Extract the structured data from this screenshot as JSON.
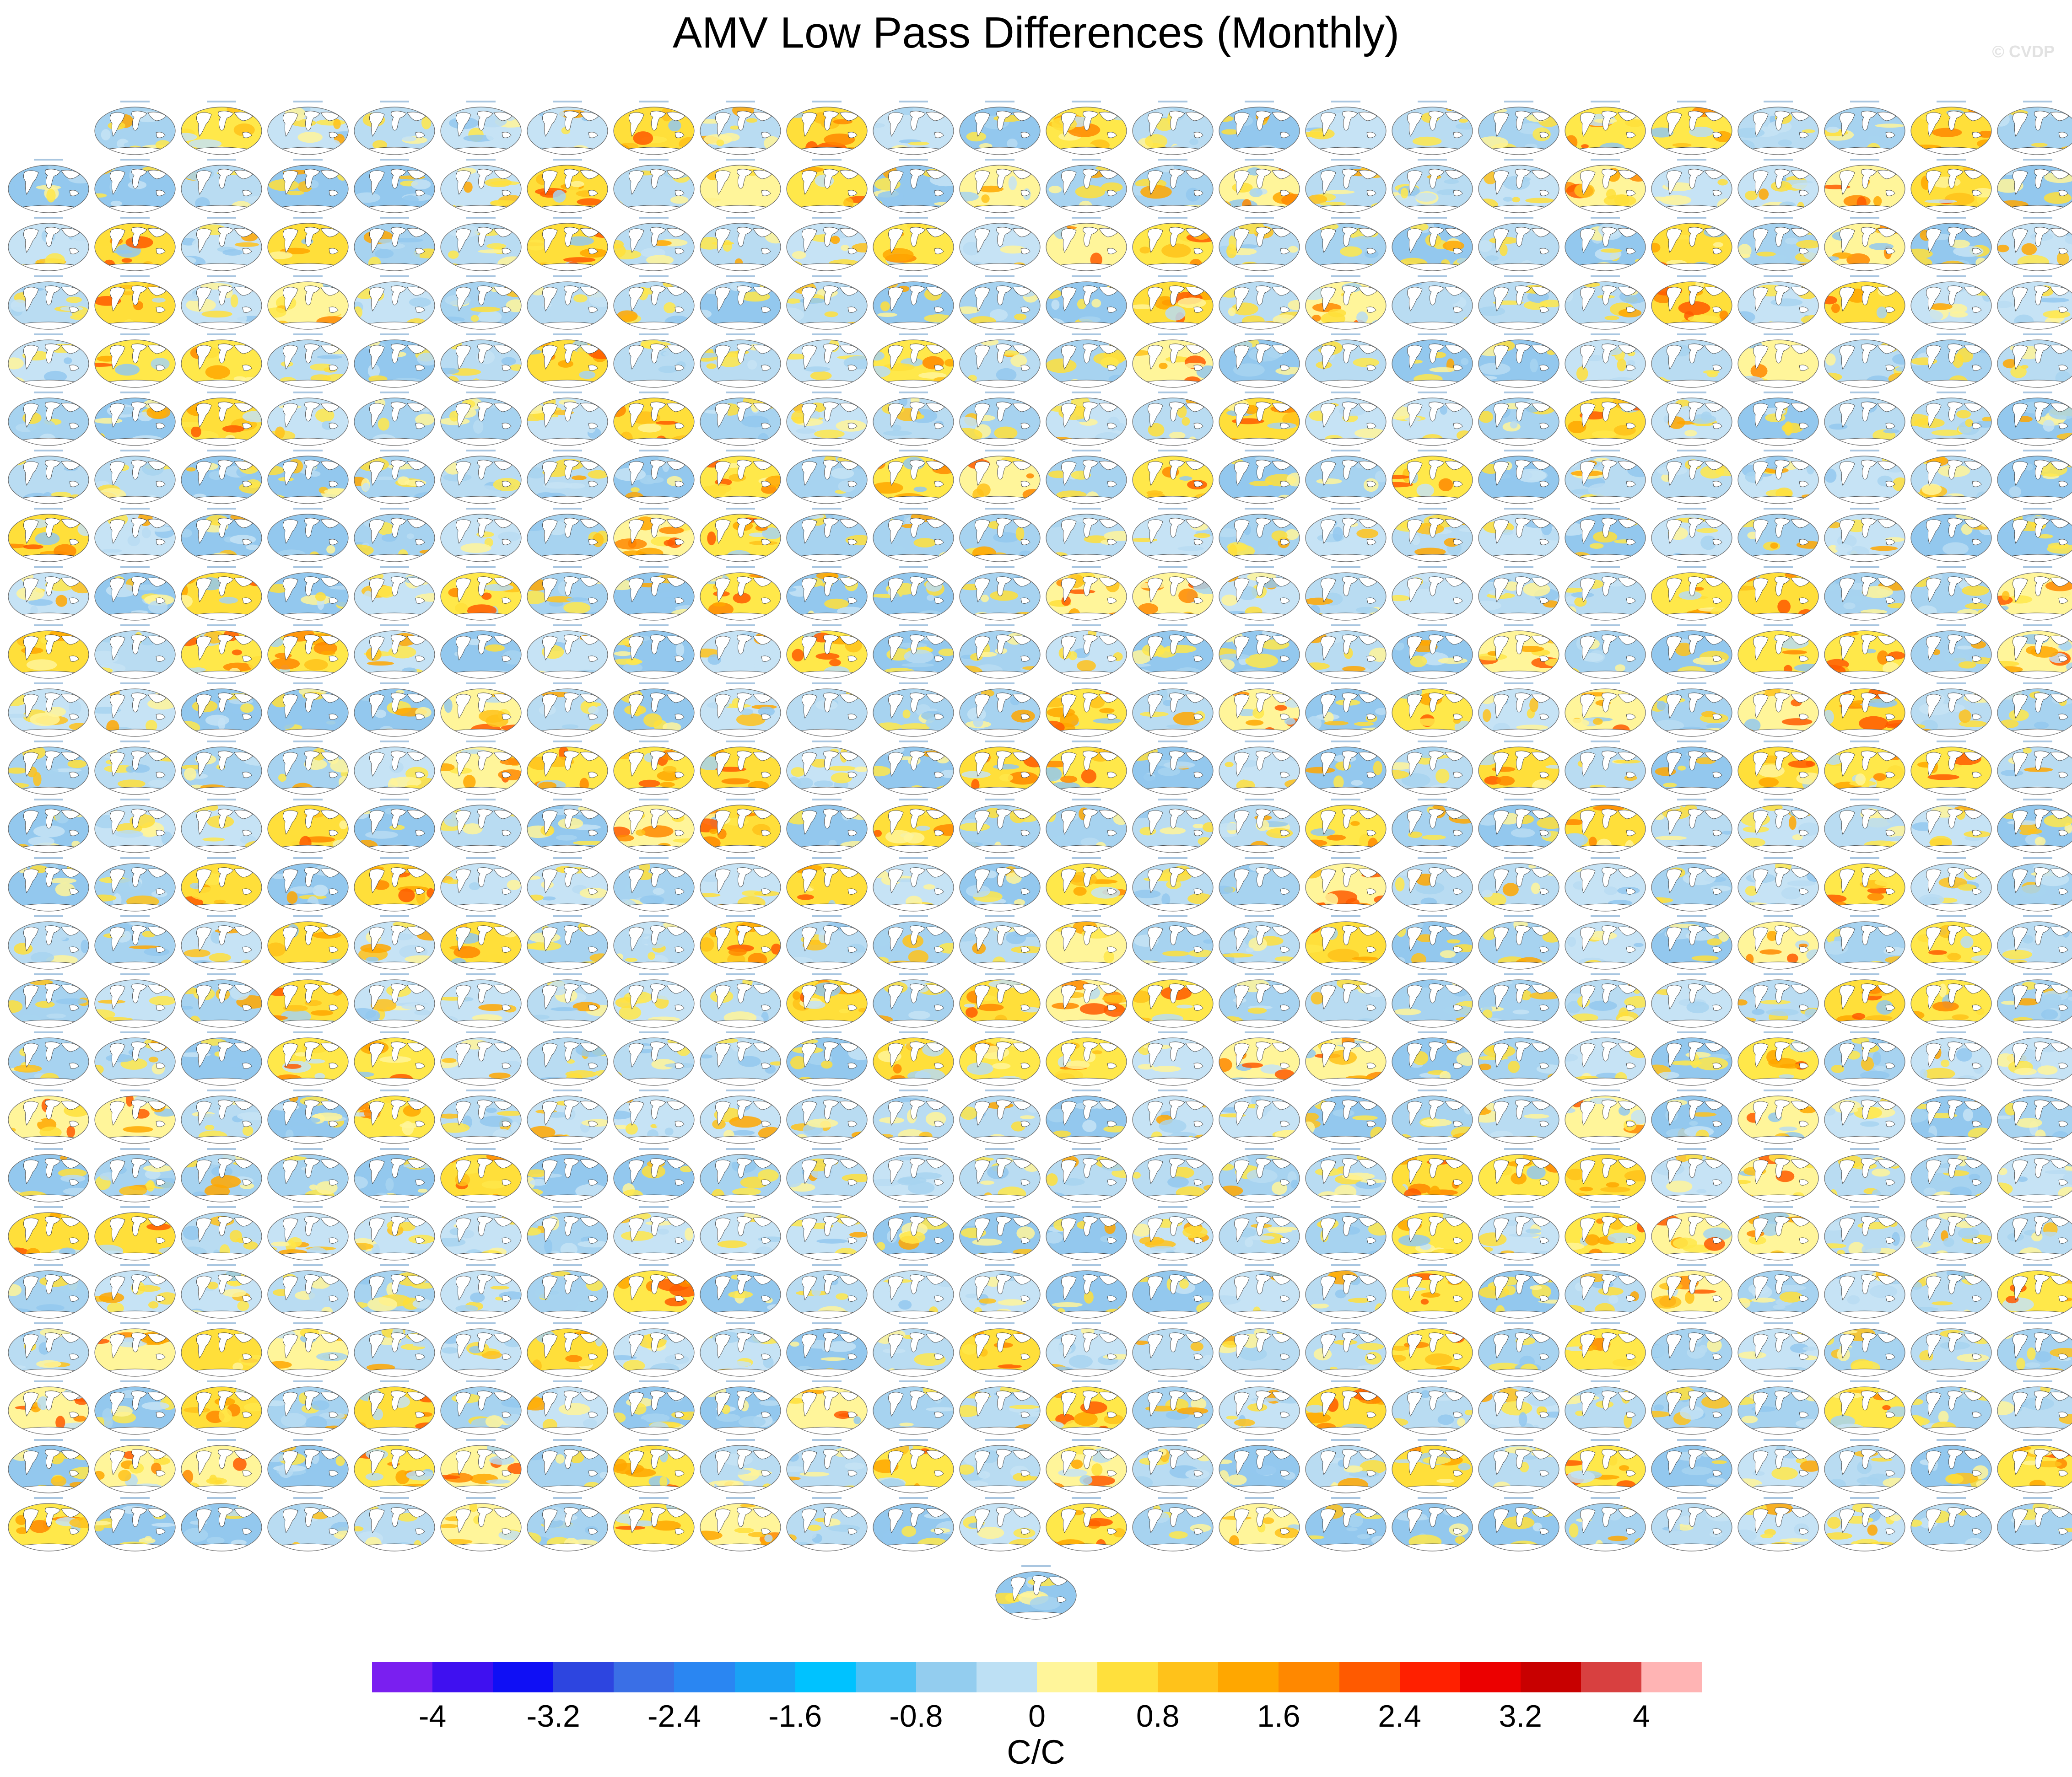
{
  "title": "AMV Low Pass Differences (Monthly)",
  "watermark": "© CVDP",
  "panels": {
    "row_counts": [
      23,
      24,
      24,
      24,
      24,
      24,
      24,
      24,
      24,
      24,
      24,
      24,
      24,
      24,
      24,
      24,
      24,
      24,
      24,
      24,
      24,
      24,
      24,
      24,
      24,
      1
    ],
    "panel_title_visible": "unreadable at this resolution"
  },
  "colorbar": {
    "colors": [
      "#7a1ff0",
      "#3f10f0",
      "#0f0ff5",
      "#2d45e0",
      "#3a6fe6",
      "#2a86f2",
      "#1aa2f5",
      "#00c2ff",
      "#4fc1f5",
      "#93cdef",
      "#bde0f4",
      "#fff59a",
      "#ffe03c",
      "#ffc21a",
      "#ffa700",
      "#ff8800",
      "#ff5a00",
      "#ff2000",
      "#ec0000",
      "#c80000",
      "#d84040",
      "#ffb4b4"
    ],
    "tick_labels": [
      "-4",
      "-3.2",
      "-2.4",
      "-1.6",
      "-0.8",
      "0",
      "0.8",
      "1.6",
      "2.4",
      "3.2",
      "4"
    ],
    "units": "C/C"
  }
}
